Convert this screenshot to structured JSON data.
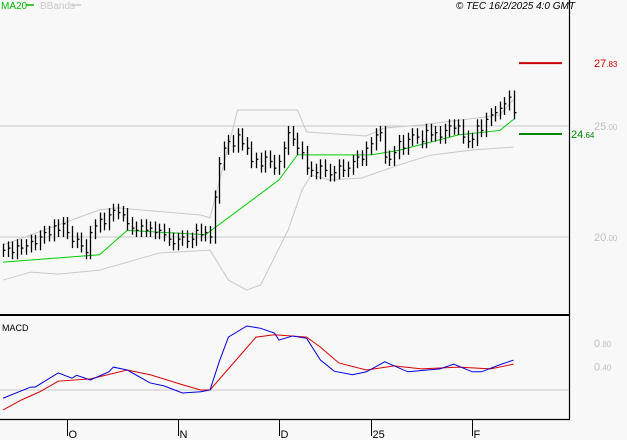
{
  "header": {
    "legend": [
      {
        "label": "MA20",
        "color": "#00bb00"
      },
      {
        "label": "BBands",
        "color": "#c8c8c8"
      }
    ],
    "copyright": "© TEC 16/2/2025 4:0 GMT"
  },
  "colors": {
    "bars": "#000000",
    "ma20": "#00cc00",
    "bands": "#c8c8c8",
    "macd": "#0000dd",
    "signal": "#dd0000",
    "grid": "#c8c8c8",
    "resistance": "#cc0000",
    "support": "#008800"
  },
  "chart_data": [
    {
      "type": "line",
      "title": "",
      "yticks": [
        "25.00",
        "20.00"
      ],
      "ylim": [
        16.6,
        30.0
      ],
      "grid": true,
      "legend_placement": "top-left",
      "xticks": [
        {
          "label": "O",
          "bar": 14
        },
        {
          "label": "N",
          "bar": 38
        },
        {
          "label": "D",
          "bar": 60
        },
        {
          "label": "25",
          "bar": 80
        },
        {
          "label": "F",
          "bar": 102
        }
      ],
      "close": [
        19.4,
        19.5,
        19.3,
        19.6,
        19.5,
        19.6,
        19.8,
        19.7,
        20.0,
        20.2,
        20.1,
        20.5,
        20.3,
        20.6,
        20.2,
        19.8,
        19.9,
        19.6,
        19.3,
        20.2,
        20.5,
        20.8,
        20.6,
        21.0,
        21.2,
        21.1,
        21.0,
        20.6,
        20.4,
        20.3,
        20.5,
        20.3,
        20.4,
        20.2,
        20.3,
        20.1,
        19.9,
        19.7,
        19.9,
        20.0,
        19.8,
        19.9,
        20.3,
        20.1,
        20.2,
        20.0,
        21.8,
        23.3,
        24.0,
        24.3,
        24.1,
        24.6,
        24.2,
        24.0,
        23.4,
        23.5,
        23.2,
        23.6,
        23.4,
        23.1,
        23.4,
        24.0,
        24.7,
        24.4,
        24.0,
        23.8,
        23.1,
        23.0,
        22.9,
        23.2,
        23.0,
        22.8,
        22.9,
        23.2,
        23.0,
        23.1,
        23.4,
        23.6,
        23.5,
        24.0,
        24.2,
        24.6,
        24.7,
        23.6,
        23.5,
        23.8,
        24.3,
        24.0,
        24.4,
        24.6,
        24.5,
        24.3,
        24.8,
        24.6,
        24.7,
        24.5,
        24.8,
        25.0,
        24.9,
        25.0,
        24.5,
        24.3,
        24.4,
        25.0,
        24.8,
        25.3,
        25.5,
        25.6,
        25.8,
        26.0,
        26.3,
        25.6
      ],
      "ma20": [
        [
          0,
          18.87
        ],
        [
          21,
          19.2
        ],
        [
          27,
          20.3
        ],
        [
          44,
          20.1
        ],
        [
          60,
          22.57
        ],
        [
          64,
          23.7
        ],
        [
          80,
          23.7
        ],
        [
          86,
          23.9
        ],
        [
          99,
          24.6
        ],
        [
          108,
          24.8
        ],
        [
          111,
          25.3
        ]
      ],
      "bband_upper": [
        [
          0,
          19.64
        ],
        [
          21,
          21.22
        ],
        [
          25,
          21.31
        ],
        [
          43,
          20.99
        ],
        [
          45,
          20.86
        ],
        [
          51,
          25.72
        ],
        [
          64,
          25.72
        ],
        [
          66,
          24.73
        ],
        [
          79,
          24.55
        ],
        [
          83,
          24.91
        ],
        [
          91,
          25.05
        ],
        [
          103,
          25.36
        ],
        [
          108,
          25.5
        ],
        [
          111,
          26.2
        ]
      ],
      "bband_lower": [
        [
          0,
          18.06
        ],
        [
          6,
          18.42
        ],
        [
          12,
          18.33
        ],
        [
          21,
          18.51
        ],
        [
          34,
          19.28
        ],
        [
          45,
          19.41
        ],
        [
          49,
          18.06
        ],
        [
          53,
          17.61
        ],
        [
          56,
          17.84
        ],
        [
          62,
          20.32
        ],
        [
          65,
          22.12
        ],
        [
          67,
          22.79
        ],
        [
          71,
          22.57
        ],
        [
          78,
          22.66
        ],
        [
          86,
          23.24
        ],
        [
          93,
          23.69
        ],
        [
          102,
          23.92
        ],
        [
          111,
          24.05
        ]
      ],
      "levels": [
        {
          "value": "27.83",
          "color": "#cc0000"
        },
        {
          "value": "24.64",
          "color": "#008800"
        }
      ]
    },
    {
      "type": "line",
      "title": "MACD",
      "yticks": [
        "0.80",
        "0.40"
      ],
      "ylim": [
        -0.5,
        1.25
      ],
      "macd": [
        [
          0,
          -0.14
        ],
        [
          6,
          0.05
        ],
        [
          7,
          0.05
        ],
        [
          12,
          0.29
        ],
        [
          15,
          0.2
        ],
        [
          16,
          0.25
        ],
        [
          19,
          0.17
        ],
        [
          23,
          0.31
        ],
        [
          24,
          0.39
        ],
        [
          27,
          0.34
        ],
        [
          32,
          0.12
        ],
        [
          35,
          0.07
        ],
        [
          39,
          -0.05
        ],
        [
          43,
          -0.03
        ],
        [
          45,
          0
        ],
        [
          47,
          0.48
        ],
        [
          49,
          0.9
        ],
        [
          53,
          1.09
        ],
        [
          56,
          1.05
        ],
        [
          59,
          0.97
        ],
        [
          60,
          0.85
        ],
        [
          63,
          0.92
        ],
        [
          66,
          0.88
        ],
        [
          69,
          0.51
        ],
        [
          72,
          0.32
        ],
        [
          76,
          0.26
        ],
        [
          79,
          0.31
        ],
        [
          83,
          0.48
        ],
        [
          88,
          0.31
        ],
        [
          95,
          0.36
        ],
        [
          98,
          0.44
        ],
        [
          102,
          0.31
        ],
        [
          104,
          0.31
        ],
        [
          108,
          0.43
        ],
        [
          111,
          0.51
        ]
      ],
      "signal": [
        [
          0,
          -0.34
        ],
        [
          4,
          -0.17
        ],
        [
          8,
          -0.03
        ],
        [
          12,
          0.15
        ],
        [
          19,
          0.19
        ],
        [
          27,
          0.34
        ],
        [
          32,
          0.26
        ],
        [
          39,
          0.09
        ],
        [
          43,
          0
        ],
        [
          45,
          0
        ],
        [
          52,
          0.63
        ],
        [
          55,
          0.9
        ],
        [
          59,
          0.94
        ],
        [
          66,
          0.9
        ],
        [
          69,
          0.73
        ],
        [
          73,
          0.46
        ],
        [
          79,
          0.34
        ],
        [
          85,
          0.41
        ],
        [
          91,
          0.36
        ],
        [
          99,
          0.39
        ],
        [
          106,
          0.36
        ],
        [
          111,
          0.44
        ]
      ]
    }
  ]
}
